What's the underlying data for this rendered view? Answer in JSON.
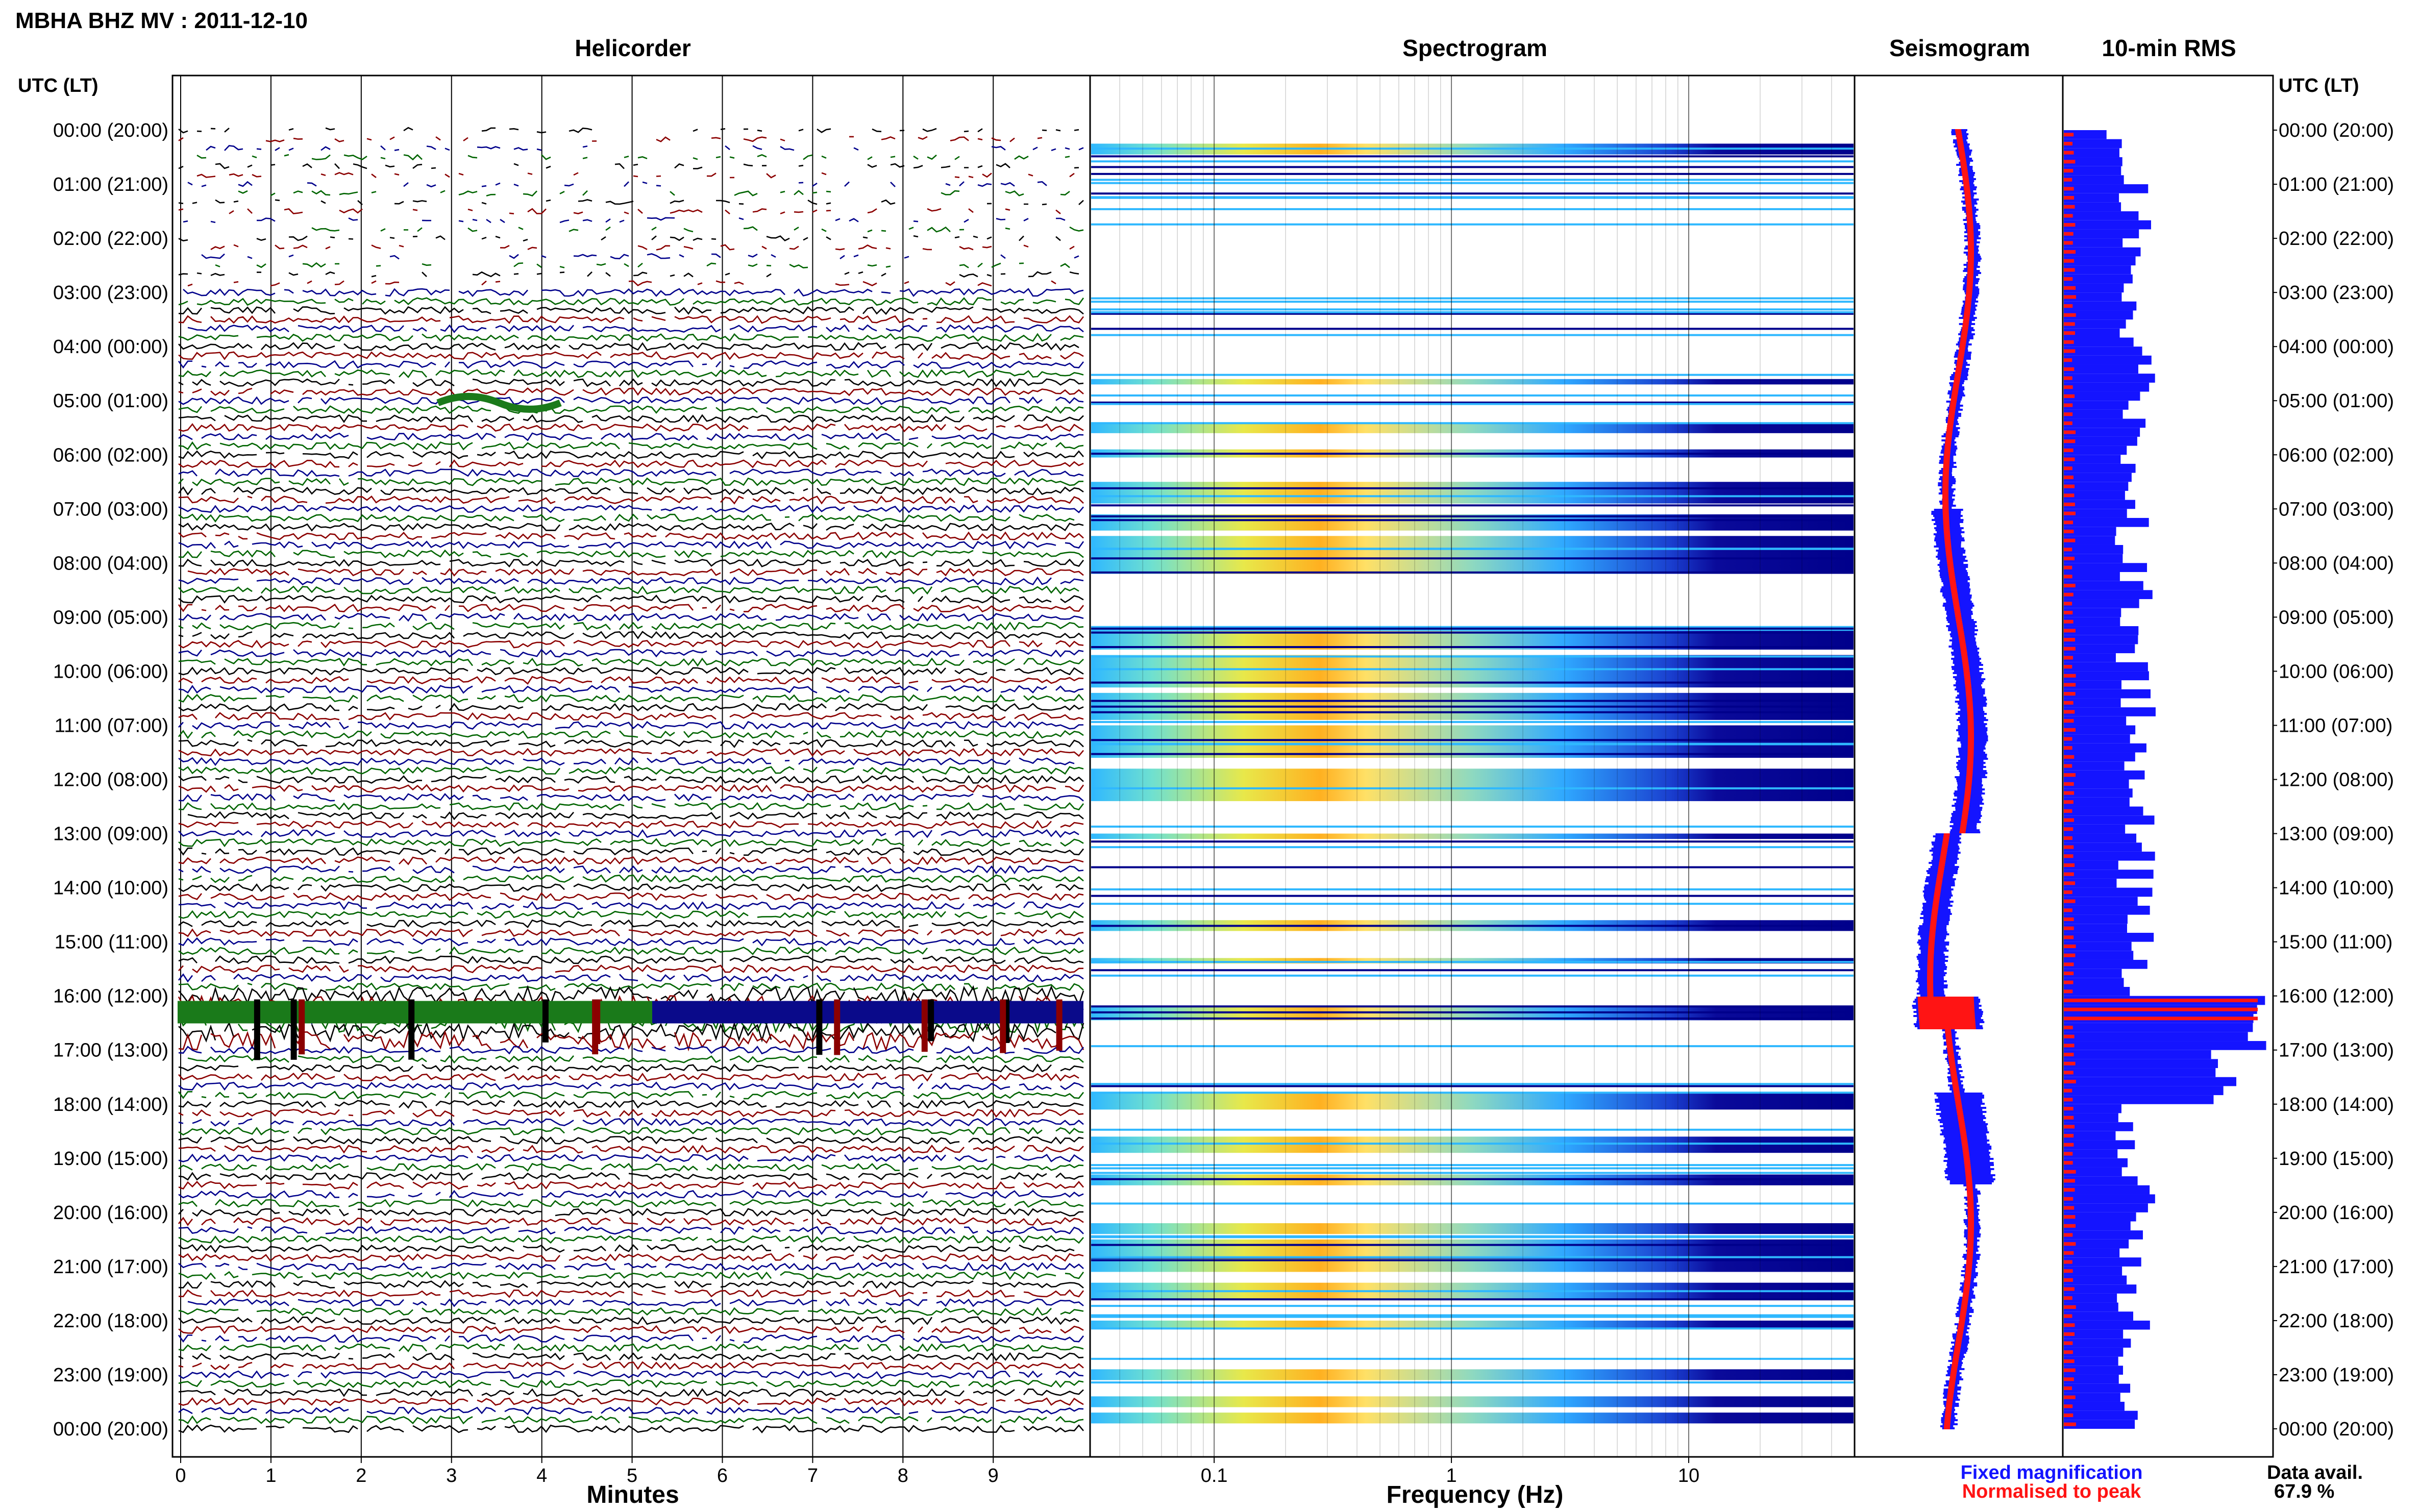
{
  "title": "MBHA BHZ MV : 2011-12-10",
  "panels": {
    "helicorder": "Helicorder",
    "spectrogram": "Spectrogram",
    "seismogram": "Seismogram",
    "rms": "10-min RMS"
  },
  "utc_label_left": "UTC (LT)",
  "utc_label_right": "UTC (LT)",
  "xlabel_minutes": "Minutes",
  "xlabel_frequency": "Frequency (Hz)",
  "legend": {
    "fixed": "Fixed magnification",
    "normalised": "Normalised to peak",
    "fixed_color": "#1414ff",
    "normalised_color": "#ff1414"
  },
  "data_avail": {
    "label": "Data avail.",
    "value": "67.9 %"
  },
  "chart_data": {
    "type": "heatmap",
    "time_labels": [
      "00:00 (20:00)",
      "01:00 (21:00)",
      "02:00 (22:00)",
      "03:00 (23:00)",
      "04:00 (00:00)",
      "05:00 (01:00)",
      "06:00 (02:00)",
      "07:00 (03:00)",
      "08:00 (04:00)",
      "09:00 (05:00)",
      "10:00 (06:00)",
      "11:00 (07:00)",
      "12:00 (08:00)",
      "13:00 (09:00)",
      "14:00 (10:00)",
      "15:00 (11:00)",
      "16:00 (12:00)",
      "17:00 (13:00)",
      "18:00 (14:00)",
      "19:00 (15:00)",
      "20:00 (16:00)",
      "21:00 (17:00)",
      "22:00 (18:00)",
      "23:00 (19:00)",
      "00:00 (20:00)"
    ],
    "minutes_ticks": [
      "0",
      "1",
      "2",
      "3",
      "4",
      "5",
      "6",
      "7",
      "8",
      "9"
    ],
    "frequency_ticks": [
      "0.1",
      "1",
      "10"
    ],
    "frequency_range_hz": [
      0.03,
      50
    ],
    "trace_colors": [
      "#000000",
      "#8b0000",
      "#00008b",
      "#006400"
    ],
    "event_time_utc": "16:00-17:00",
    "rms_peak_time_utc": "16:10",
    "data_availability_percent": 67.9
  }
}
